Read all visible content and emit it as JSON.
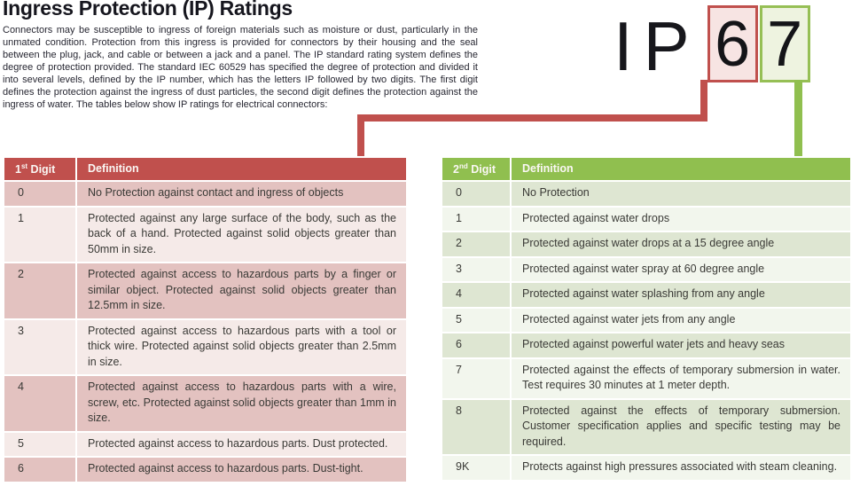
{
  "page": {
    "title": "Ingress Protection (IP) Ratings",
    "intro": "Connectors may be susceptible to ingress of foreign materials such as moisture or dust, particularly in the unmated condition. Protection from this ingress is provided for connectors by their housing and the seal between the plug, jack, and cable or between a jack and a panel. The IP standard rating system defines the degree of protection provided. The standard IEC 60529 has specified the degree of protection and divided it into several levels, defined by the IP number, which has the letters IP followed by two digits. The first digit defines the protection against the ingress of dust particles, the second digit defines the protection against the ingress of water. The tables below show IP ratings for electrical connectors:"
  },
  "ip_graphic": {
    "prefix": "IP",
    "first_digit": "6",
    "second_digit": "7"
  },
  "colors": {
    "red_accent": "#c0504d",
    "red_band_dark": "#e3c2c0",
    "red_band_light": "#f5eae8",
    "green_accent": "#90bf4f",
    "green_band_dark": "#dee6d2",
    "green_band_light": "#f2f6ed"
  },
  "first_digit_table": {
    "header": {
      "digit_num": "1",
      "digit_sup": "st",
      "digit_word": " Digit",
      "definition": "Definition"
    },
    "rows": [
      {
        "digit": "0",
        "definition": "No Protection against contact and ingress of objects"
      },
      {
        "digit": "1",
        "definition": "Protected against any large surface of the body, such as the back of a hand. Protected against solid objects greater than 50mm in size."
      },
      {
        "digit": "2",
        "definition": "Protected against access to hazardous parts by a finger or similar object. Protected against solid objects greater than 12.5mm in size."
      },
      {
        "digit": "3",
        "definition": "Protected against access to hazardous parts with a tool or thick wire. Protected against solid objects greater than 2.5mm in size."
      },
      {
        "digit": "4",
        "definition": "Protected against access to hazardous parts with a wire, screw, etc. Protected against solid objects greater than 1mm in size."
      },
      {
        "digit": "5",
        "definition": "Protected against access to hazardous parts. Dust protected."
      },
      {
        "digit": "6",
        "definition": "Protected against access to hazardous parts. Dust-tight."
      }
    ]
  },
  "second_digit_table": {
    "header": {
      "digit_num": "2",
      "digit_sup": "nd",
      "digit_word": " Digit",
      "definition": "Definition"
    },
    "rows": [
      {
        "digit": "0",
        "definition": "No Protection"
      },
      {
        "digit": "1",
        "definition": "Protected against water drops"
      },
      {
        "digit": "2",
        "definition": "Protected against water drops at a 15 degree angle"
      },
      {
        "digit": "3",
        "definition": "Protected against water spray at 60 degree angle"
      },
      {
        "digit": "4",
        "definition": "Protected against water splashing from any angle"
      },
      {
        "digit": "5",
        "definition": "Protected against water jets from any angle"
      },
      {
        "digit": "6",
        "definition": "Protected against powerful water jets and heavy seas"
      },
      {
        "digit": "7",
        "definition": "Protected against the effects of temporary submersion in water. Test requires 30 minutes at 1 meter depth."
      },
      {
        "digit": "8",
        "definition": "Protected against the effects of temporary submersion. Customer specification applies and specific testing may be required."
      },
      {
        "digit": "9K",
        "definition": "Protects against high pressures associated with steam cleaning."
      }
    ]
  }
}
